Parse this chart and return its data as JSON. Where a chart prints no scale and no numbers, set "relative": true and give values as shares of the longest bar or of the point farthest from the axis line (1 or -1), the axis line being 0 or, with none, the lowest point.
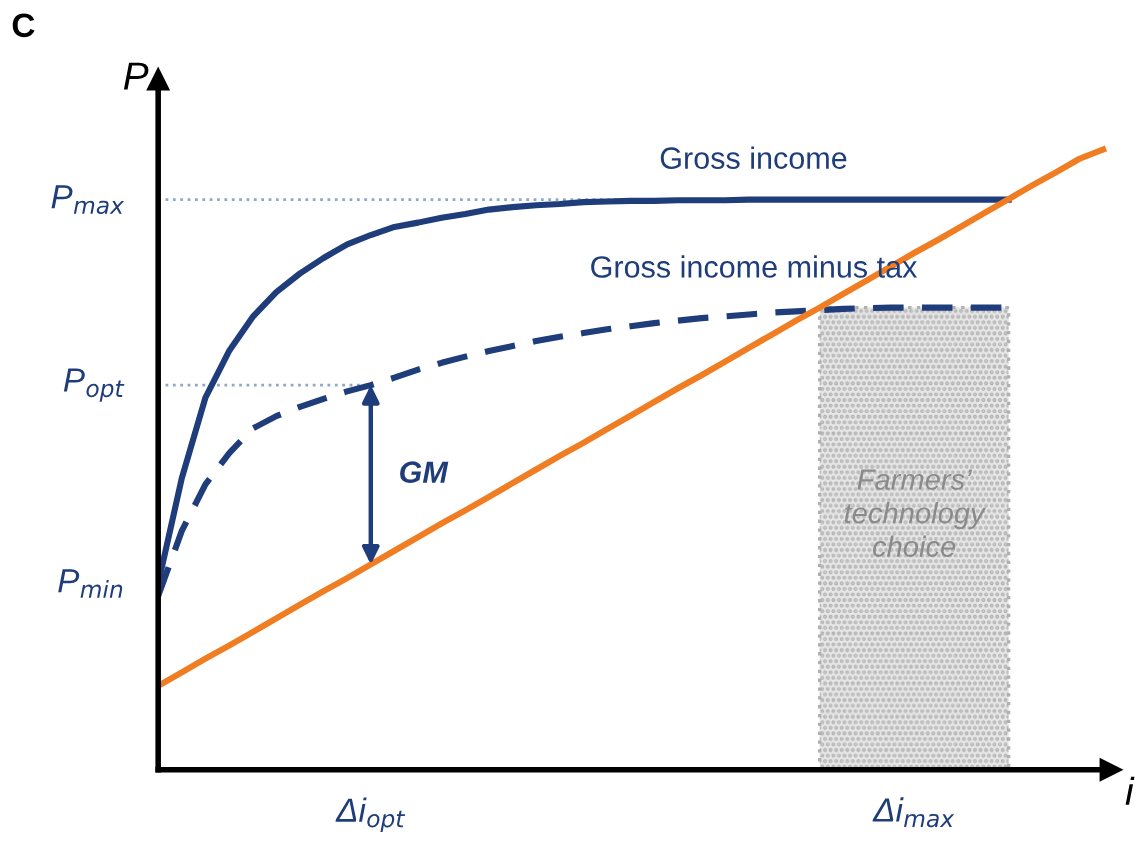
{
  "chart_data": {
    "type": "line",
    "relative": true,
    "ylabel": "P",
    "xlabel": "i",
    "categories": [
      null,
      null,
      null,
      null,
      null,
      null,
      null,
      null,
      null,
      "Δi$_{opt}$",
      null,
      null,
      null,
      null,
      null,
      null,
      null,
      null,
      null,
      null,
      null,
      null,
      null,
      null,
      null,
      null,
      null,
      null,
      null,
      null,
      null,
      null,
      "Δi$_{max}$",
      null,
      null,
      null,
      null,
      null,
      null,
      null,
      null
    ],
    "tick_labels": "x",
    "series": [
      {
        "type": "area",
        "color": "#b0b0b0",
        "line_style": "dotted",
        "values": [
          null,
          null,
          null,
          null,
          null,
          null,
          null,
          null,
          null,
          null,
          null,
          null,
          null,
          null,
          null,
          null,
          null,
          null,
          null,
          null,
          null,
          null,
          null,
          null,
          null,
          null,
          null,
          null,
          0.745,
          0.745,
          0.745,
          0.745,
          0.745,
          0.745,
          0.745,
          0.745,
          0.745,
          null,
          null,
          null,
          null
        ]
      },
      {
        "color": "#8fa8c8",
        "line_style": "dotted",
        "values": [
          0.919,
          0.919,
          0.919,
          0.919,
          0.919,
          0.919,
          0.919,
          0.919,
          0.919,
          0.919,
          0.919,
          0.919,
          0.919,
          0.919,
          0.919,
          0.919,
          0.919,
          0.919,
          0.919,
          0.919,
          0.919,
          0.919,
          0.919,
          0.919,
          0.919,
          0.919,
          0.919,
          0.919,
          0.919,
          0.919,
          0.919,
          0.919,
          0.919,
          0.919,
          0.919,
          0.919,
          0.919,
          null,
          null,
          null,
          null
        ]
      },
      {
        "color": "#8fa8c8",
        "line_style": "dotted",
        "values": [
          0.62,
          0.62,
          0.62,
          0.62,
          0.62,
          0.62,
          0.62,
          0.62,
          0.62,
          0.62,
          null,
          null,
          null,
          null,
          null,
          null,
          null,
          null,
          null,
          null,
          null,
          null,
          null,
          null,
          null,
          null,
          null,
          null,
          null,
          null,
          null,
          null,
          null,
          null,
          null,
          null,
          null,
          null,
          null,
          null,
          null
        ]
      },
      {
        "name": "Gross income",
        "color": "#1f3d7a",
        "line_style": "solid",
        "values": [
          0.3,
          0.47,
          0.6,
          0.675,
          0.73,
          0.77,
          0.8,
          0.825,
          0.847,
          0.862,
          0.875,
          0.882,
          0.89,
          0.896,
          0.903,
          0.907,
          0.91,
          0.912,
          0.915,
          0.916,
          0.917,
          0.917,
          0.918,
          0.918,
          0.918,
          0.919,
          0.919,
          0.919,
          0.919,
          0.919,
          0.919,
          0.919,
          0.919,
          0.919,
          0.919,
          0.919,
          0.919,
          null,
          null,
          null,
          null
        ]
      },
      {
        "name": "Gross income minus tax",
        "color": "#1f3d7a",
        "line_style": "dashed",
        "values": [
          0.28,
          0.385,
          0.46,
          0.51,
          0.55,
          0.57,
          0.585,
          0.598,
          0.61,
          0.62,
          0.632,
          0.645,
          0.656,
          0.666,
          0.675,
          0.683,
          0.691,
          0.698,
          0.704,
          0.71,
          0.715,
          0.72,
          0.724,
          0.728,
          0.731,
          0.734,
          0.737,
          0.739,
          0.741,
          0.743,
          0.744,
          0.745,
          0.745,
          0.745,
          0.745,
          0.745,
          0.745,
          null,
          null,
          null,
          null
        ]
      },
      {
        "color": "#f07d22",
        "line_style": "solid",
        "values": [
          0.135,
          0.157,
          0.179,
          0.2,
          0.222,
          0.244,
          0.266,
          0.288,
          0.309,
          0.331,
          0.353,
          0.375,
          0.397,
          0.418,
          0.44,
          0.462,
          0.484,
          0.506,
          0.527,
          0.549,
          0.571,
          0.593,
          0.615,
          0.636,
          0.658,
          0.68,
          0.702,
          0.724,
          0.745,
          0.767,
          0.789,
          0.811,
          0.833,
          0.854,
          0.876,
          0.898,
          0.92,
          0.942,
          0.963,
          0.985,
          1.0
        ]
      }
    ],
    "annotations": [
      "C",
      "GM",
      "Farmers’\ntechnology\nchoice",
      "P$_{max}$",
      "P$_{opt}$",
      "P$_{min}$"
    ]
  }
}
